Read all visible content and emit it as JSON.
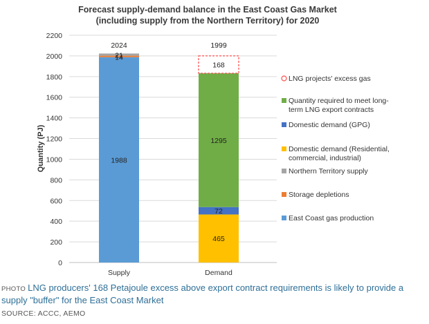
{
  "chart_data": {
    "type": "bar",
    "stacked": true,
    "title": [
      "Forecast supply-demand balance in the East Coast Gas Market",
      "(including supply from the Northern Territory) for 2020"
    ],
    "ylabel": "Quantity (PJ)",
    "xlabel": "",
    "ylim": [
      0,
      2200
    ],
    "yticks": [
      0,
      200,
      400,
      600,
      800,
      1000,
      1200,
      1400,
      1600,
      1800,
      2000,
      2200
    ],
    "categories": [
      "Supply",
      "Demand"
    ],
    "totals": [
      "2024",
      "1999"
    ],
    "series": [
      {
        "name": "East Coast gas production",
        "color": "#5b9bd5",
        "values": [
          1988,
          0
        ],
        "labels": [
          "1988",
          ""
        ]
      },
      {
        "name": "Storage depletions",
        "color": "#ed7d31",
        "values": [
          14,
          0
        ],
        "labels": [
          "14",
          ""
        ]
      },
      {
        "name": "Northern Territory supply",
        "color": "#a5a5a5",
        "values": [
          21,
          0
        ],
        "labels": [
          "21",
          ""
        ]
      },
      {
        "name": "Domestic demand (Residential, commercial, industrial)",
        "color": "#ffc000",
        "values": [
          0,
          465
        ],
        "labels": [
          "",
          "465"
        ]
      },
      {
        "name": "Domestic demand (GPG)",
        "color": "#4472c4",
        "values": [
          0,
          72
        ],
        "labels": [
          "",
          "72"
        ]
      },
      {
        "name": "Quantity required to meet long-term LNG export contracts",
        "color": "#70ad47",
        "values": [
          0,
          1295
        ],
        "labels": [
          "",
          "1295"
        ]
      },
      {
        "name": "LNG projects' excess gas",
        "color": "#ff5050",
        "values": [
          0,
          168
        ],
        "labels": [
          "",
          "168"
        ],
        "dashed": true
      }
    ],
    "legend": {
      "position": "right",
      "order": [
        6,
        5,
        4,
        3,
        2,
        1,
        0
      ],
      "entries": [
        [
          "LNG projects' excess gas"
        ],
        [
          "Quantity required to meet long-",
          "term LNG export contracts"
        ],
        [
          "Domestic demand (GPG)"
        ],
        [
          "Domestic demand (Residential,",
          "commercial, industrial)"
        ],
        [
          "Northern Territory supply"
        ],
        [
          "Storage depletions"
        ],
        [
          "East Coast gas production"
        ]
      ]
    }
  },
  "caption": {
    "photo_tag": "PHOTO",
    "text": "LNG producers' 168 Petajoule excess above export contract requirements is likely to provide a supply \"buffer\" for the East Coast Market"
  },
  "source": "SOURCE: ACCC, AEMO"
}
